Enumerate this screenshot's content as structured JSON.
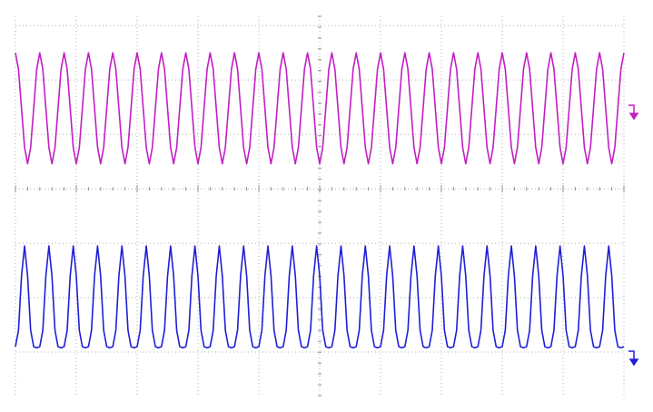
{
  "chart_data": {
    "type": "line",
    "x": [
      0,
      0.05,
      0.1,
      0.15,
      0.2,
      0.25,
      0.3,
      0.35,
      0.4,
      0.45,
      0.5,
      0.55,
      0.6,
      0.65,
      0.7,
      0.75,
      0.8,
      0.85,
      0.9,
      0.95,
      1,
      1.05,
      1.1,
      1.15,
      1.2,
      1.25,
      1.3,
      1.35,
      1.4,
      1.45,
      1.5,
      1.55,
      1.6,
      1.65,
      1.7,
      1.75,
      1.8,
      1.85,
      1.9,
      1.95,
      2,
      2.05,
      2.1,
      2.15,
      2.2,
      2.25,
      2.3,
      2.35,
      2.4,
      2.45,
      2.5,
      2.55,
      2.6,
      2.65,
      2.7,
      2.75,
      2.8,
      2.85,
      2.9,
      2.95,
      3,
      3.05,
      3.1,
      3.15,
      3.2,
      3.25,
      3.3,
      3.35,
      3.4,
      3.45,
      3.5,
      3.55,
      3.6,
      3.65,
      3.7,
      3.75,
      3.8,
      3.85,
      3.9,
      3.95,
      4,
      4.05,
      4.1,
      4.15,
      4.2,
      4.25,
      4.3,
      4.35,
      4.4,
      4.45,
      4.5,
      4.55,
      4.6,
      4.65,
      4.7,
      4.75,
      4.8,
      4.85,
      4.9,
      4.95,
      5,
      5.05,
      5.1,
      5.15,
      5.2,
      5.25,
      5.3,
      5.35,
      5.4,
      5.45,
      5.5,
      5.55,
      5.6,
      5.65,
      5.7,
      5.75,
      5.8,
      5.85,
      5.9,
      5.95,
      6,
      6.05,
      6.1,
      6.15,
      6.2,
      6.25,
      6.3,
      6.35,
      6.4,
      6.45,
      6.5,
      6.55,
      6.6,
      6.65,
      6.7,
      6.75,
      6.8,
      6.85,
      6.9,
      6.95,
      7,
      7.05,
      7.1,
      7.15,
      7.2,
      7.25,
      7.3,
      7.35,
      7.4,
      7.45,
      7.5,
      7.55,
      7.6,
      7.65,
      7.7,
      7.75,
      7.8,
      7.85,
      7.9,
      7.95,
      8,
      8.05,
      8.1,
      8.15,
      8.2,
      8.25,
      8.3,
      8.35,
      8.4,
      8.45,
      8.5,
      8.55,
      8.6,
      8.65,
      8.7,
      8.75,
      8.8,
      8.85,
      8.9,
      8.95,
      9,
      9.05,
      9.1,
      9.15,
      9.2,
      9.25,
      9.3,
      9.35,
      9.4,
      9.45,
      9.5,
      9.55,
      9.6,
      9.65,
      9.7,
      9.75,
      9.8,
      9.85,
      9.9,
      9.95,
      10
    ],
    "series": [
      {
        "color": "#c21fc4",
        "values": [
          2.5,
          2.2,
          1.48,
          0.76,
          0.46,
          0.76,
          1.48,
          2.2,
          2.5,
          2.2,
          1.48,
          0.76,
          0.46,
          0.76,
          1.48,
          2.2,
          2.5,
          2.2,
          1.48,
          0.76,
          0.46,
          0.76,
          1.48,
          2.2,
          2.5,
          2.2,
          1.48,
          0.76,
          0.46,
          0.76,
          1.48,
          2.2,
          2.5,
          2.2,
          1.48,
          0.76,
          0.46,
          0.76,
          1.48,
          2.2,
          2.5,
          2.2,
          1.48,
          0.76,
          0.46,
          0.76,
          1.48,
          2.2,
          2.5,
          2.2,
          1.48,
          0.76,
          0.46,
          0.76,
          1.48,
          2.2,
          2.5,
          2.2,
          1.48,
          0.76,
          0.46,
          0.76,
          1.48,
          2.2,
          2.5,
          2.2,
          1.48,
          0.76,
          0.46,
          0.76,
          1.48,
          2.2,
          2.5,
          2.2,
          1.48,
          0.76,
          0.46,
          0.76,
          1.48,
          2.2,
          2.5,
          2.2,
          1.48,
          0.76,
          0.46,
          0.76,
          1.48,
          2.2,
          2.5,
          2.2,
          1.48,
          0.76,
          0.46,
          0.76,
          1.48,
          2.2,
          2.5,
          2.2,
          1.48,
          0.76,
          0.46,
          0.76,
          1.48,
          2.2,
          2.5,
          2.2,
          1.48,
          0.76,
          0.46,
          0.76,
          1.48,
          2.2,
          2.5,
          2.2,
          1.48,
          0.76,
          0.46,
          0.76,
          1.48,
          2.2,
          2.5,
          2.2,
          1.48,
          0.76,
          0.46,
          0.76,
          1.48,
          2.2,
          2.5,
          2.2,
          1.48,
          0.76,
          0.46,
          0.76,
          1.48,
          2.2,
          2.5,
          2.2,
          1.48,
          0.76,
          0.46,
          0.76,
          1.48,
          2.2,
          2.5,
          2.2,
          1.48,
          0.76,
          0.46,
          0.76,
          1.48,
          2.2,
          2.5,
          2.2,
          1.48,
          0.76,
          0.46,
          0.76,
          1.48,
          2.2,
          2.5,
          2.2,
          1.48,
          0.76,
          0.46,
          0.76,
          1.48,
          2.2,
          2.5,
          2.2,
          1.48,
          0.76,
          0.46,
          0.76,
          1.48,
          2.2,
          2.5,
          2.2,
          1.48,
          0.76,
          0.46,
          0.76,
          1.48,
          2.2,
          2.5,
          2.2,
          1.48,
          0.76,
          0.46,
          0.76,
          1.48,
          2.2,
          2.5,
          2.2,
          1.48,
          0.76,
          0.46,
          0.76,
          1.48,
          2.2,
          2.5
        ]
      },
      {
        "color": "#1f1fd6",
        "values": [
          -2.9,
          -2.6,
          -1.6,
          -1.05,
          -1.6,
          -2.6,
          -2.9,
          -2.92,
          -2.9,
          -2.6,
          -1.6,
          -1.05,
          -1.6,
          -2.6,
          -2.9,
          -2.92,
          -2.9,
          -2.6,
          -1.6,
          -1.05,
          -1.6,
          -2.6,
          -2.9,
          -2.92,
          -2.9,
          -2.6,
          -1.6,
          -1.05,
          -1.6,
          -2.6,
          -2.9,
          -2.92,
          -2.9,
          -2.6,
          -1.6,
          -1.05,
          -1.6,
          -2.6,
          -2.9,
          -2.92,
          -2.9,
          -2.6,
          -1.6,
          -1.05,
          -1.6,
          -2.6,
          -2.9,
          -2.92,
          -2.9,
          -2.6,
          -1.6,
          -1.05,
          -1.6,
          -2.6,
          -2.9,
          -2.92,
          -2.9,
          -2.6,
          -1.6,
          -1.05,
          -1.6,
          -2.6,
          -2.9,
          -2.92,
          -2.9,
          -2.6,
          -1.6,
          -1.05,
          -1.6,
          -2.6,
          -2.9,
          -2.92,
          -2.9,
          -2.6,
          -1.6,
          -1.05,
          -1.6,
          -2.6,
          -2.9,
          -2.92,
          -2.9,
          -2.6,
          -1.6,
          -1.05,
          -1.6,
          -2.6,
          -2.9,
          -2.92,
          -2.9,
          -2.6,
          -1.6,
          -1.05,
          -1.6,
          -2.6,
          -2.9,
          -2.92,
          -2.9,
          -2.6,
          -1.6,
          -1.05,
          -1.6,
          -2.6,
          -2.9,
          -2.92,
          -2.9,
          -2.6,
          -1.6,
          -1.05,
          -1.6,
          -2.6,
          -2.9,
          -2.92,
          -2.9,
          -2.6,
          -1.6,
          -1.05,
          -1.6,
          -2.6,
          -2.9,
          -2.92,
          -2.9,
          -2.6,
          -1.6,
          -1.05,
          -1.6,
          -2.6,
          -2.9,
          -2.92,
          -2.9,
          -2.6,
          -1.6,
          -1.05,
          -1.6,
          -2.6,
          -2.9,
          -2.92,
          -2.9,
          -2.6,
          -1.6,
          -1.05,
          -1.6,
          -2.6,
          -2.9,
          -2.92,
          -2.9,
          -2.6,
          -1.6,
          -1.05,
          -1.6,
          -2.6,
          -2.9,
          -2.92,
          -2.9,
          -2.6,
          -1.6,
          -1.05,
          -1.6,
          -2.6,
          -2.9,
          -2.92,
          -2.9,
          -2.6,
          -1.6,
          -1.05,
          -1.6,
          -2.6,
          -2.9,
          -2.92,
          -2.9,
          -2.6,
          -1.6,
          -1.05,
          -1.6,
          -2.6,
          -2.9,
          -2.92,
          -2.9,
          -2.6,
          -1.6,
          -1.05,
          -1.6,
          -2.6,
          -2.9,
          -2.92,
          -2.9,
          -2.6,
          -1.6,
          -1.05,
          -1.6,
          -2.6,
          -2.9,
          -2.92,
          -2.9,
          -2.6,
          -1.6,
          -1.05,
          -1.6,
          -2.6,
          -2.9,
          -2.92,
          -2.9
        ]
      }
    ],
    "xlim": [
      0,
      10
    ],
    "xticks": [
      0,
      1,
      2,
      3,
      4,
      5,
      6,
      7,
      8,
      9,
      10
    ],
    "ylim": [
      -3.8,
      3.17
    ],
    "yticks": [
      -3,
      -2,
      -1,
      0,
      1,
      2,
      3
    ],
    "grid": true
  }
}
